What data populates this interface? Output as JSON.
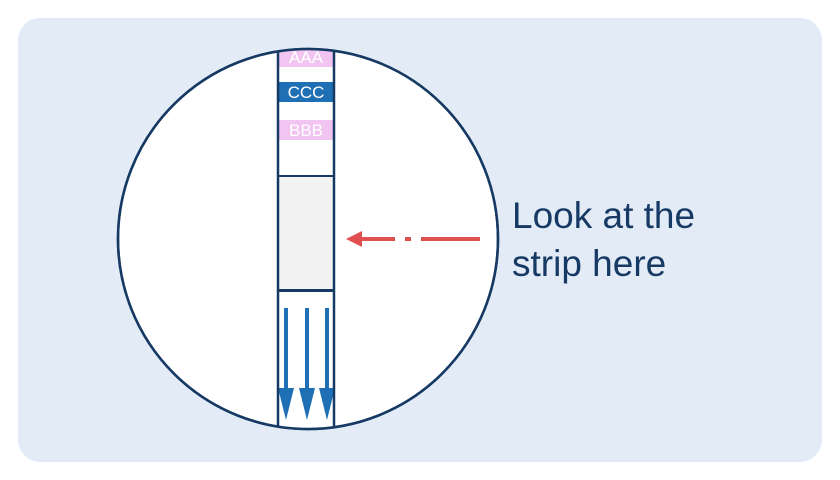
{
  "caption": {
    "line1": "Look at the",
    "line2": "strip here"
  },
  "strip": {
    "bands": [
      {
        "label": "AAA",
        "fill": "#f2c4f2",
        "text_color": "#ffffff"
      },
      {
        "label": "CCC",
        "fill": "#1f6fb5",
        "text_color": "#ffffff"
      },
      {
        "label": "BBB",
        "fill": "#f2c4f2",
        "text_color": "#ffffff"
      }
    ],
    "window_fill": "#f2f2f2",
    "flow_arrows": 3
  },
  "colors": {
    "background": "#e3ebf7",
    "outline": "#163a63",
    "pointer_arrow": "#e05050",
    "flow_arrow": "#1f6fb5",
    "text": "#163a63"
  },
  "icons": {
    "pointer": "dash-dot-arrow-left-icon",
    "flow": "down-arrow-icon"
  }
}
